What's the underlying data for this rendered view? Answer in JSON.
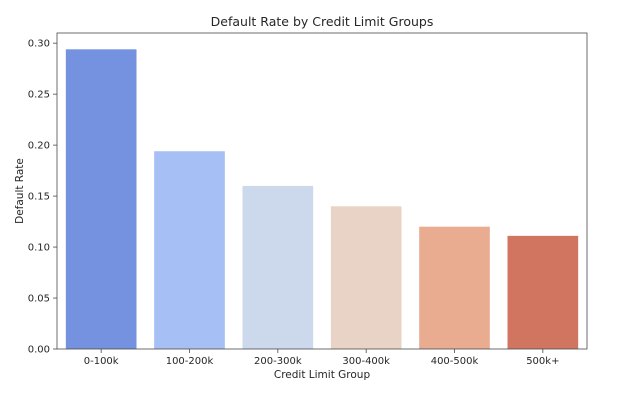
{
  "chart_data": {
    "type": "bar",
    "title": "Default Rate by Credit Limit Groups",
    "xlabel": "Credit Limit Group",
    "ylabel": "Default Rate",
    "categories": [
      "0-100k",
      "100-200k",
      "200-300k",
      "300-400k",
      "400-500k",
      "500k+"
    ],
    "values": [
      0.294,
      0.194,
      0.16,
      0.14,
      0.12,
      0.111
    ],
    "ylim": [
      0,
      0.31
    ],
    "yticks": [
      0.0,
      0.05,
      0.1,
      0.15,
      0.2,
      0.25,
      0.3
    ],
    "ytick_labels": [
      "0.00",
      "0.05",
      "0.10",
      "0.15",
      "0.20",
      "0.25",
      "0.30"
    ],
    "grid": false,
    "legend": "none",
    "colors": [
      "#7592e0",
      "#a6bff4",
      "#ccd8eb",
      "#e9d3c6",
      "#eaac91",
      "#d17561"
    ]
  }
}
